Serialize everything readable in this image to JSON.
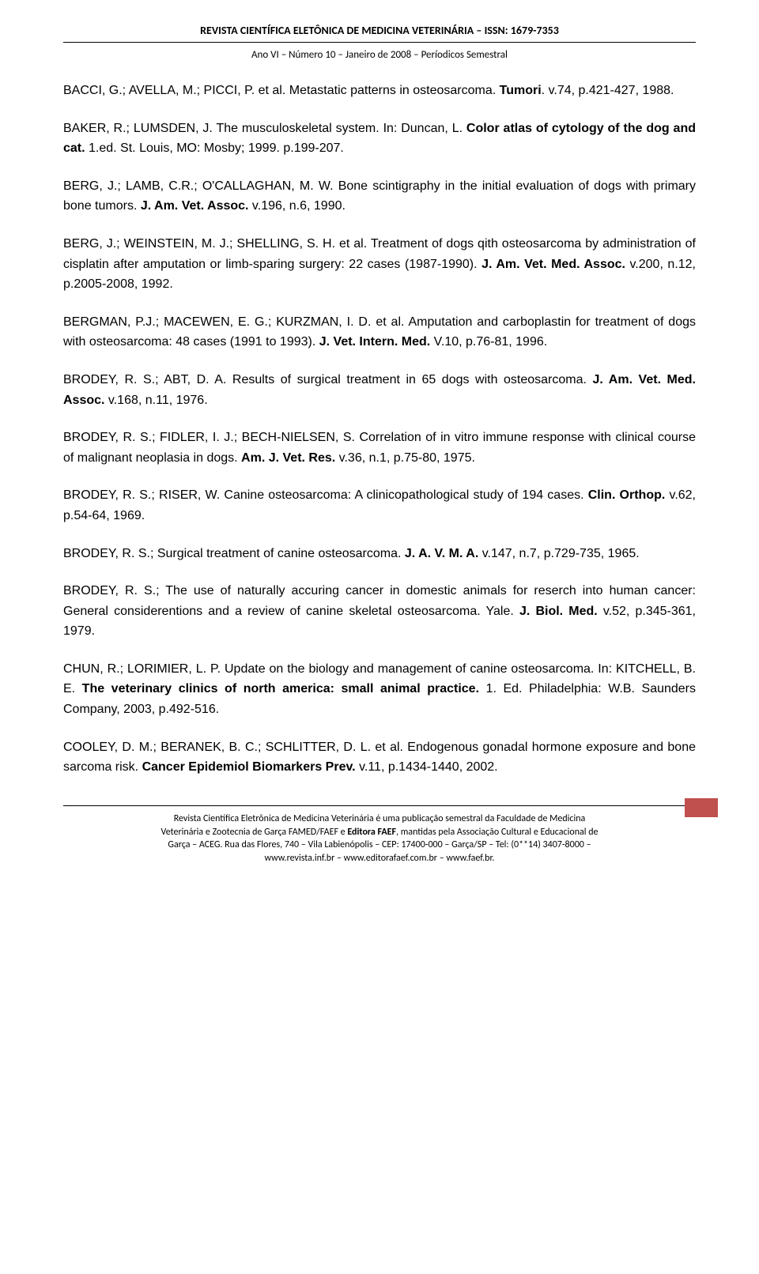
{
  "header": {
    "title": "REVISTA CIENTÍFICA ELETÔNICA DE MEDICINA VETERINÁRIA – ISSN: 1679-7353",
    "subtitle": "Ano VI – Número 10 – Janeiro de 2008 – Períodicos Semestral"
  },
  "references": [
    {
      "authors": "BACCI, G.; AVELLA, M.; PICCI, P. et al. Metastatic patterns in osteosarcoma. ",
      "title": "Tumori",
      "rest": ". v.74, p.421-427, 1988."
    },
    {
      "authors": "BAKER, R.; LUMSDEN, J. The musculoskeletal system. In: Duncan, L. ",
      "title": "Color atlas of cytology of the dog and cat.",
      "rest": " 1.ed. St. Louis, MO: Mosby; 1999. p.199-207."
    },
    {
      "authors": "BERG, J.; LAMB, C.R.; O'CALLAGHAN, M. W. Bone scintigraphy in the initial evaluation of dogs with primary bone tumors. ",
      "title": "J. Am. Vet. Assoc.",
      "rest": " v.196, n.6, 1990."
    },
    {
      "authors": "BERG, J.; WEINSTEIN, M. J.; SHELLING, S. H. et al. Treatment of dogs qith osteosarcoma by administration of cisplatin after amputation or limb-sparing surgery: 22 cases (1987-1990). ",
      "title": "J. Am. Vet. Med. Assoc.",
      "rest": " v.200, n.12, p.2005-2008, 1992."
    },
    {
      "authors": "BERGMAN, P.J.; MACEWEN, E. G.; KURZMAN, I. D. et al. Amputation and carboplastin for treatment of dogs with osteosarcoma: 48 cases (1991 to 1993). ",
      "title": "J. Vet. Intern. Med.",
      "rest": " V.10, p.76-81, 1996."
    },
    {
      "authors": "BRODEY, R. S.; ABT, D. A. Results of surgical treatment in 65 dogs with osteosarcoma. ",
      "title": "J. Am. Vet. Med. Assoc.",
      "rest": " v.168, n.11, 1976."
    },
    {
      "authors": "BRODEY, R. S.; FIDLER, I. J.; BECH-NIELSEN, S. Correlation of in vitro immune response with clinical course of malignant neoplasia in dogs. ",
      "title": "Am. J. Vet. Res.",
      "rest": " v.36, n.1, p.75-80, 1975."
    },
    {
      "authors": "BRODEY, R. S.; RISER, W. Canine osteosarcoma: A clinicopathological study of 194 cases. ",
      "title": "Clin. Orthop.",
      "rest": " v.62, p.54-64, 1969."
    },
    {
      "authors": "BRODEY, R. S.; Surgical treatment of canine osteosarcoma. ",
      "title": "J. A. V. M. A.",
      "rest": " v.147, n.7, p.729-735, 1965."
    },
    {
      "authors": "BRODEY, R. S.; The use of naturally accuring cancer in domestic animals for reserch into human cancer: General considerentions and a review of canine skeletal osteosarcoma. Yale. ",
      "title": "J. Biol. Med.",
      "rest": " v.52, p.345-361, 1979."
    },
    {
      "authors": "CHUN, R.; LORIMIER, L. P. Update on the biology and management of canine osteosarcoma. In: KITCHELL, B. E. ",
      "title": "The veterinary clinics of north america: small animal practice.",
      "rest": " 1. Ed. Philadelphia: W.B. Saunders Company, 2003, p.492-516."
    },
    {
      "authors": "COOLEY, D. M.; BERANEK, B. C.; SCHLITTER, D. L. et al. Endogenous gonadal hormone exposure and bone sarcoma risk. ",
      "title": "Cancer Epidemiol Biomarkers Prev.",
      "rest": " v.11, p.1434-1440, 2002."
    }
  ],
  "footer": {
    "line1": "Revista Científica Eletrônica de Medicina Veterinária é uma publicação semestral da Faculdade de Medicina",
    "line2_pre": "Veterinária e Zootecnia de Garça FAMED/FAEF e ",
    "line2_bold": "Editora FAEF",
    "line2_post": ", mantidas pela Associação Cultural e Educacional de",
    "line3": "Garça – ACEG. Rua das Flores, 740 – Vila Labienópolis – CEP: 17400-000 – Garça/SP – Tel: (0**14) 3407-8000 –",
    "line4": "www.revista.inf.br – www.editorafaef.com.br – www.faef.br."
  },
  "colors": {
    "text": "#000000",
    "background": "#ffffff",
    "accent": "#c0504d",
    "border": "#000000"
  }
}
